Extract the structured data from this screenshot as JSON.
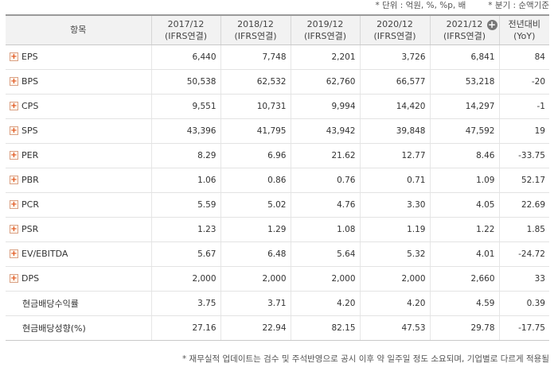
{
  "notes": {
    "unit": "* 단위 : 억원, %, %p, 배",
    "period": "* 분기 : 순액기준"
  },
  "header": {
    "item": "항목",
    "cols": [
      {
        "line1": "2017/12",
        "line2": "(IFRS연결)"
      },
      {
        "line1": "2018/12",
        "line2": "(IFRS연결)"
      },
      {
        "line1": "2019/12",
        "line2": "(IFRS연결)"
      },
      {
        "line1": "2020/12",
        "line2": "(IFRS연결)"
      },
      {
        "line1": "2021/12",
        "line2": "(IFRS연결)"
      }
    ],
    "yoy_line1": "전년대비",
    "yoy_line2": "(YoY)",
    "expand_icon": "circle-plus-icon"
  },
  "rows": [
    {
      "label": "EPS",
      "expand": true,
      "values": [
        "6,440",
        "7,748",
        "2,201",
        "3,726",
        "6,841"
      ],
      "yoy": "84",
      "neg": false
    },
    {
      "label": "BPS",
      "expand": true,
      "values": [
        "50,538",
        "62,532",
        "62,760",
        "66,577",
        "53,218"
      ],
      "yoy": "-20",
      "neg": true
    },
    {
      "label": "CPS",
      "expand": true,
      "values": [
        "9,551",
        "10,731",
        "9,994",
        "14,420",
        "14,297"
      ],
      "yoy": "-1",
      "neg": true
    },
    {
      "label": "SPS",
      "expand": true,
      "values": [
        "43,396",
        "41,795",
        "43,942",
        "39,848",
        "47,592"
      ],
      "yoy": "19",
      "neg": false
    },
    {
      "label": "PER",
      "expand": true,
      "values": [
        "8.29",
        "6.96",
        "21.62",
        "12.77",
        "8.46"
      ],
      "yoy": "-33.75",
      "neg": true
    },
    {
      "label": "PBR",
      "expand": true,
      "values": [
        "1.06",
        "0.86",
        "0.76",
        "0.71",
        "1.09"
      ],
      "yoy": "52.17",
      "neg": false
    },
    {
      "label": "PCR",
      "expand": true,
      "values": [
        "5.59",
        "5.02",
        "4.76",
        "3.30",
        "4.05"
      ],
      "yoy": "22.69",
      "neg": false
    },
    {
      "label": "PSR",
      "expand": true,
      "values": [
        "1.23",
        "1.29",
        "1.08",
        "1.19",
        "1.22"
      ],
      "yoy": "1.85",
      "neg": false
    },
    {
      "label": "EV/EBITDA",
      "expand": true,
      "values": [
        "5.67",
        "6.48",
        "5.64",
        "5.32",
        "4.01"
      ],
      "yoy": "-24.72",
      "neg": true
    },
    {
      "label": "DPS",
      "expand": true,
      "values": [
        "2,000",
        "2,000",
        "2,000",
        "2,000",
        "2,660"
      ],
      "yoy": "33",
      "neg": false
    },
    {
      "label": "현금배당수익률",
      "expand": false,
      "values": [
        "3.75",
        "3.71",
        "4.20",
        "4.20",
        "4.59"
      ],
      "yoy": "0.39",
      "neg": false
    },
    {
      "label": "현금배당성향(%)",
      "expand": false,
      "values": [
        "27.16",
        "22.94",
        "82.15",
        "47.53",
        "29.78"
      ],
      "yoy": "-17.75",
      "neg": true
    }
  ],
  "expand_symbol": "+",
  "expand_icon": "plus-box-icon",
  "colors": {
    "negative": "#d0021b",
    "header_bg": "#f2f2f2",
    "expand_icon": "#e0541b"
  },
  "footnote": "* 재무실적 업데이트는 검수 및 주석반영으로 공시 이후 약 일주일 정도 소요되며, 기업별로 다르게 적용될"
}
